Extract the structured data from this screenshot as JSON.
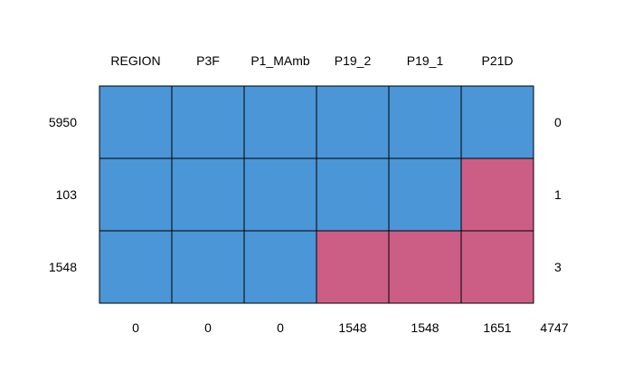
{
  "chart_data": {
    "type": "heatmap",
    "title": "",
    "columns": [
      "REGION",
      "P3F",
      "P1_MAmb",
      "P19_2",
      "P19_1",
      "P21D"
    ],
    "row_counts": [
      "5950",
      "103",
      "1548"
    ],
    "row_missing_counts": [
      "0",
      "1",
      "3"
    ],
    "column_missing_counts": [
      "0",
      "0",
      "0",
      "1548",
      "1548",
      "1651"
    ],
    "total_missing": "4747",
    "pattern": [
      [
        1,
        1,
        1,
        1,
        1,
        1
      ],
      [
        1,
        1,
        1,
        1,
        1,
        0
      ],
      [
        1,
        1,
        1,
        0,
        0,
        0
      ]
    ],
    "legend": "none",
    "grid": true
  },
  "colors": {
    "observed": "#4a96d6",
    "missing": "#cc5e86",
    "border": "#000000",
    "text": "#000000",
    "background": "#ffffff"
  }
}
